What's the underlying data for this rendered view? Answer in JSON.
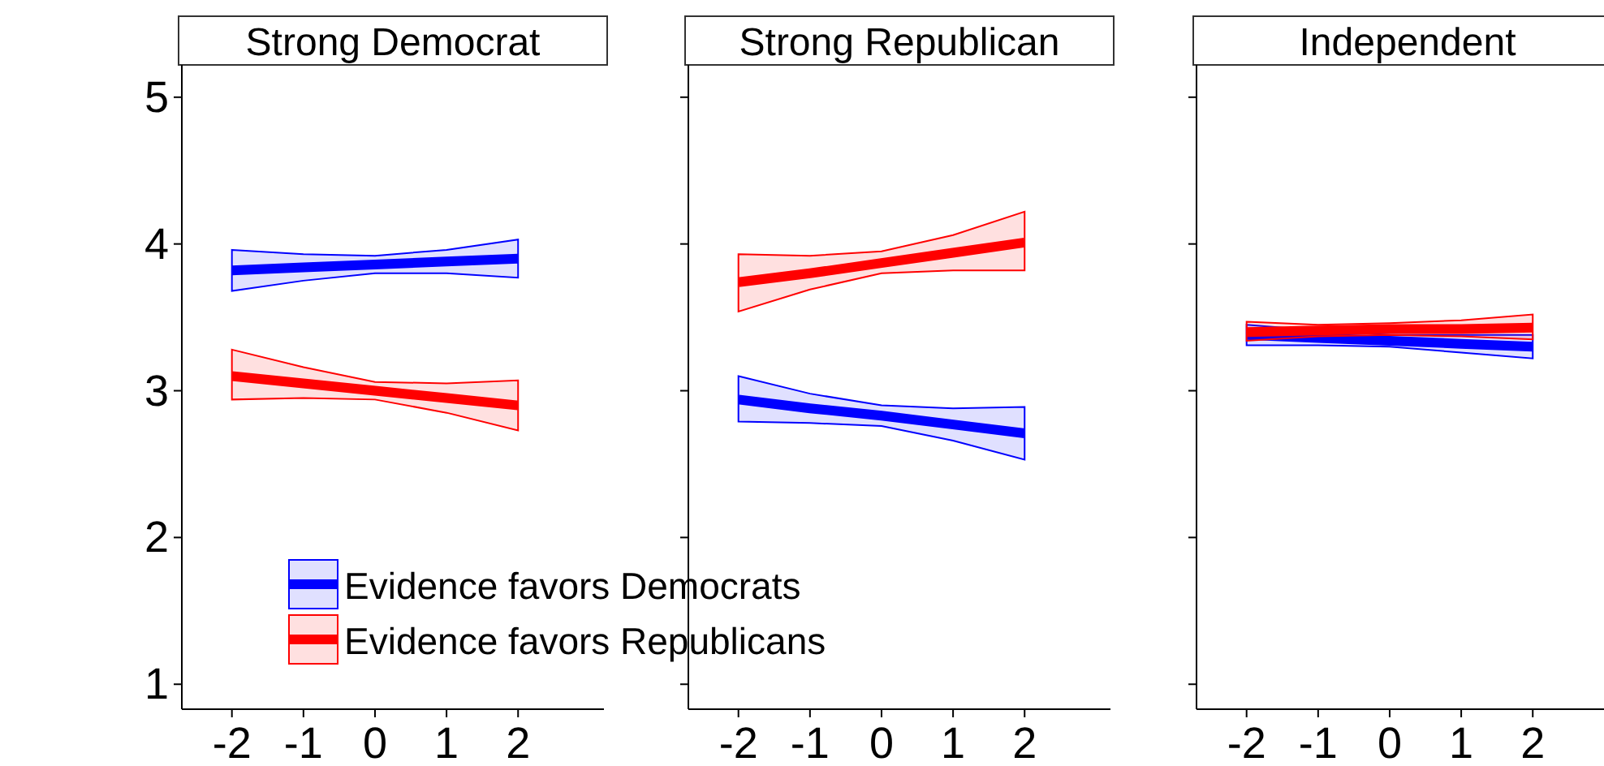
{
  "chart_data": [
    {
      "type": "line",
      "title": "Strong Democrat",
      "x": [
        -2,
        -1,
        0,
        1,
        2
      ],
      "xlim": [
        -2.7,
        3.2
      ],
      "xticks": [
        -2,
        -1,
        0,
        1,
        2
      ],
      "ylim": [
        0.83,
        5.22
      ],
      "yticks": [
        1,
        2,
        3,
        4,
        5
      ],
      "grid": false,
      "legend": "bottom",
      "series": [
        {
          "name": "Evidence favors Democrats",
          "color": "#0000ff",
          "values": [
            3.82,
            3.84,
            3.86,
            3.88,
            3.9
          ],
          "lower": [
            3.68,
            3.75,
            3.8,
            3.8,
            3.77
          ],
          "upper": [
            3.96,
            3.93,
            3.92,
            3.96,
            4.03
          ]
        },
        {
          "name": "Evidence favors Republicans",
          "color": "#ff0000",
          "values": [
            3.1,
            3.05,
            3.0,
            2.95,
            2.9
          ],
          "lower": [
            2.94,
            2.95,
            2.94,
            2.85,
            2.73
          ],
          "upper": [
            3.28,
            3.16,
            3.06,
            3.05,
            3.07
          ]
        }
      ]
    },
    {
      "type": "line",
      "title": "Strong Republican",
      "x": [
        -2,
        -1,
        0,
        1,
        2
      ],
      "xlim": [
        -2.7,
        3.2
      ],
      "xticks": [
        -2,
        -1,
        0,
        1,
        2
      ],
      "ylim": [
        0.83,
        5.22
      ],
      "yticks": [
        1,
        2,
        3,
        4,
        5
      ],
      "grid": false,
      "legend": false,
      "tick_labels": "x",
      "series": [
        {
          "color": "#0000ff",
          "values": [
            2.94,
            2.88,
            2.83,
            2.77,
            2.71
          ],
          "lower": [
            2.79,
            2.78,
            2.76,
            2.66,
            2.53
          ],
          "upper": [
            3.1,
            2.98,
            2.9,
            2.88,
            2.89
          ]
        },
        {
          "color": "#ff0000",
          "values": [
            3.74,
            3.8,
            3.87,
            3.94,
            4.01
          ],
          "lower": [
            3.54,
            3.69,
            3.8,
            3.82,
            3.82
          ],
          "upper": [
            3.93,
            3.92,
            3.95,
            4.06,
            4.22
          ]
        }
      ]
    },
    {
      "type": "line",
      "title": "Independent",
      "x": [
        -2,
        -1,
        0,
        1,
        2
      ],
      "xlim": [
        -2.7,
        3.2
      ],
      "xticks": [
        -2,
        -1,
        0,
        1,
        2
      ],
      "ylim": [
        0.83,
        5.22
      ],
      "yticks": [
        1,
        2,
        3,
        4,
        5
      ],
      "grid": false,
      "legend": false,
      "tick_labels": "x",
      "series": [
        {
          "color": "#0000ff",
          "values": [
            3.38,
            3.36,
            3.34,
            3.32,
            3.3
          ],
          "lower": [
            3.31,
            3.31,
            3.3,
            3.26,
            3.22
          ],
          "upper": [
            3.45,
            3.41,
            3.38,
            3.38,
            3.38
          ]
        },
        {
          "color": "#ff0000",
          "values": [
            3.4,
            3.41,
            3.42,
            3.42,
            3.43
          ],
          "lower": [
            3.34,
            3.37,
            3.38,
            3.37,
            3.35
          ],
          "upper": [
            3.47,
            3.45,
            3.46,
            3.48,
            3.52
          ]
        }
      ]
    }
  ]
}
